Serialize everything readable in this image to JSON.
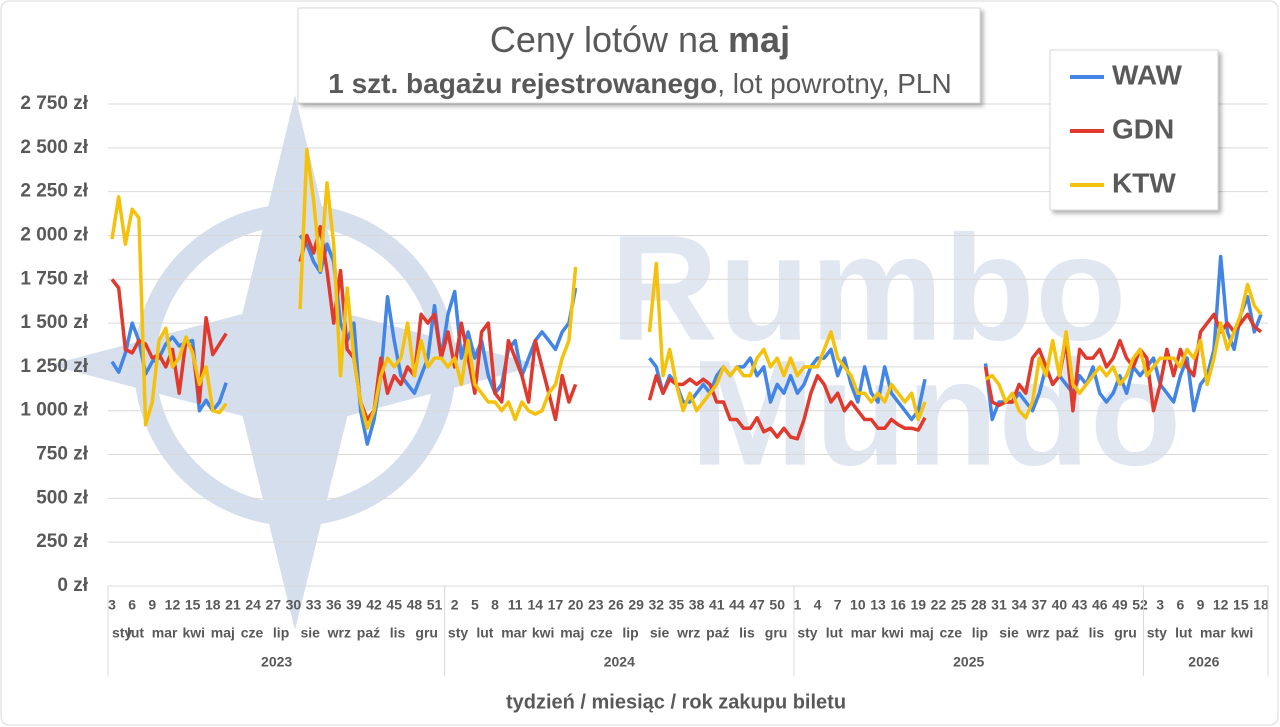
{
  "chart_data": {
    "type": "line",
    "title": "Ceny lotów na",
    "title_bold": "maj",
    "subtitle_bold": "1 szt. bagażu rejestrowanego",
    "subtitle": ", lot powrotny, PLN",
    "x_label": "tydzień / miesiąc / rok zakupu biletu",
    "watermark": [
      "Rumbo",
      "Mundo"
    ],
    "categories": [
      "3",
      null,
      null,
      "6",
      null,
      null,
      "9",
      null,
      null,
      "12",
      null,
      null,
      "15",
      null,
      null,
      "18",
      null,
      null,
      "21",
      null,
      null,
      "24",
      null,
      null,
      "27",
      null,
      null,
      "30",
      null,
      null,
      "33",
      null,
      null,
      "36",
      null,
      null,
      "39",
      null,
      null,
      "42",
      null,
      null,
      "45",
      null,
      null,
      "48",
      null,
      null,
      "51",
      null,
      null,
      "2",
      null,
      null,
      "5",
      null,
      null,
      "8",
      null,
      null,
      "11",
      null,
      null,
      "14",
      null,
      null,
      "17",
      null,
      null,
      "20",
      null,
      null,
      "23",
      null,
      null,
      "26",
      null,
      null,
      "29",
      null,
      null,
      "32",
      null,
      null,
      "35",
      null,
      null,
      "38",
      null,
      null,
      "41",
      null,
      null,
      "44",
      null,
      null,
      "47",
      null,
      null,
      "50",
      null,
      null,
      "1",
      null,
      null,
      "4",
      null,
      null,
      "7",
      null,
      null,
      "10",
      null,
      null,
      "13",
      null,
      null,
      "16",
      null,
      null,
      "19",
      null,
      null,
      "22",
      null,
      null,
      "25",
      null,
      null,
      "28",
      null,
      null,
      "31",
      null,
      null,
      "34",
      null,
      null,
      "37",
      null,
      null,
      "40",
      null,
      null,
      "43",
      null,
      null,
      "46",
      null,
      null,
      "49",
      null,
      null,
      "52",
      null,
      null,
      "3",
      null,
      null,
      "6",
      null,
      null,
      "9",
      null,
      null,
      "12",
      null,
      null,
      "15",
      null,
      null,
      "18"
    ],
    "x_groups": [
      {
        "year": "2023",
        "months": [
          "sty",
          "lut",
          "mar",
          "kwi",
          "maj",
          "cze",
          "lip",
          "sie",
          "wrz",
          "paź",
          "lis",
          "gru"
        ]
      },
      {
        "year": "2024",
        "months": [
          "sty",
          "lut",
          "mar",
          "kwi",
          "maj",
          "cze",
          "lip",
          "sie",
          "wrz",
          "paź",
          "lis",
          "gru"
        ]
      },
      {
        "year": "2025",
        "months": [
          "sty",
          "lut",
          "mar",
          "kwi",
          "maj",
          "cze",
          "lip",
          "sie",
          "wrz",
          "paź",
          "lis",
          "gru"
        ]
      },
      {
        "year": "2026",
        "months": [
          "sty",
          "lut",
          "mar",
          "kwi"
        ]
      }
    ],
    "ylim": [
      0,
      2750
    ],
    "yticks": [
      {
        "value": 0,
        "label": "0 zł"
      },
      {
        "value": 250,
        "label": "250 zł"
      },
      {
        "value": 500,
        "label": "500 zł"
      },
      {
        "value": 750,
        "label": "750 zł"
      },
      {
        "value": 1000,
        "label": "1 000 zł"
      },
      {
        "value": 1250,
        "label": "1 250 zł"
      },
      {
        "value": 1500,
        "label": "1 500 zł"
      },
      {
        "value": 1750,
        "label": "1 750 zł"
      },
      {
        "value": 2000,
        "label": "2 000 zł"
      },
      {
        "value": 2250,
        "label": "2 250 zł"
      },
      {
        "value": 2500,
        "label": "2 500 zł"
      },
      {
        "value": 2750,
        "label": "2 750 zł"
      }
    ],
    "grid": true,
    "legend": "upper right",
    "series": [
      {
        "name": "WAW",
        "color": "#4285e6",
        "values": [
          1280,
          1220,
          1330,
          1500,
          1400,
          1210,
          1280,
          1300,
          1380,
          1420,
          1370,
          1390,
          1400,
          1000,
          1060,
          1000,
          1050,
          1160,
          null,
          null,
          null,
          null,
          null,
          null,
          null,
          null,
          null,
          null,
          2000,
          1950,
          1850,
          1790,
          1950,
          1850,
          1500,
          1400,
          1500,
          1000,
          810,
          950,
          1200,
          1650,
          1400,
          1200,
          1150,
          1100,
          1200,
          1300,
          1600,
          1300,
          1550,
          1680,
          1300,
          1450,
          1300,
          1400,
          1200,
          1100,
          1150,
          1350,
          1400,
          1200,
          1300,
          1400,
          1450,
          1400,
          1350,
          1450,
          1500,
          1700,
          null,
          null,
          null,
          null,
          null,
          null,
          null,
          null,
          null,
          null,
          1300,
          1250,
          1100,
          1200,
          1150,
          1050,
          1050,
          1100,
          1150,
          1100,
          1200,
          1250,
          1200,
          1250,
          1250,
          1300,
          1200,
          1250,
          1050,
          1150,
          1100,
          1200,
          1100,
          1150,
          1250,
          1300,
          1300,
          1350,
          1200,
          1300,
          1150,
          1050,
          1250,
          1100,
          1050,
          1250,
          1100,
          1050,
          1000,
          950,
          1000,
          1180,
          null,
          null,
          null,
          null,
          null,
          null,
          null,
          null,
          1270,
          950,
          1050,
          1050,
          1050,
          1100,
          1050,
          1000,
          1100,
          1250,
          1150,
          1200,
          1150,
          1100,
          1200,
          1150,
          1250,
          1100,
          1050,
          1100,
          1200,
          1100,
          1250,
          1200,
          1250,
          1300,
          1150,
          1100,
          1050,
          1200,
          1300,
          1000,
          1150,
          1200,
          1350,
          1880,
          1450,
          1350,
          1550,
          1650,
          1450,
          1550
        ]
      },
      {
        "name": "GDN",
        "color": "#e0392e",
        "values": [
          1750,
          1700,
          1350,
          1330,
          1400,
          1380,
          1300,
          1320,
          1250,
          1350,
          1100,
          1400,
          1350,
          1050,
          1530,
          1320,
          1380,
          1440,
          null,
          null,
          null,
          null,
          null,
          null,
          null,
          null,
          null,
          null,
          1850,
          2000,
          1900,
          2050,
          1800,
          1500,
          1800,
          1350,
          1300,
          1050,
          950,
          1000,
          1300,
          1100,
          1200,
          1150,
          1250,
          1200,
          1550,
          1500,
          1550,
          1300,
          1450,
          1250,
          1500,
          1300,
          1100,
          1450,
          1500,
          1100,
          1050,
          1400,
          1300,
          1200,
          1050,
          1400,
          1250,
          1100,
          950,
          1200,
          1050,
          1150,
          null,
          null,
          null,
          null,
          null,
          null,
          null,
          null,
          null,
          null,
          1060,
          1200,
          1100,
          1180,
          1150,
          1150,
          1180,
          1150,
          1180,
          1150,
          1050,
          1050,
          950,
          950,
          900,
          900,
          960,
          880,
          900,
          850,
          900,
          850,
          840,
          950,
          1100,
          1200,
          1150,
          1050,
          1100,
          1000,
          1050,
          1000,
          950,
          950,
          900,
          900,
          950,
          920,
          900,
          900,
          890,
          960,
          null,
          null,
          null,
          null,
          null,
          null,
          null,
          null,
          1250,
          1050,
          1030,
          1050,
          1050,
          1150,
          1100,
          1300,
          1350,
          1250,
          1150,
          1200,
          1400,
          1000,
          1350,
          1300,
          1300,
          1350,
          1250,
          1300,
          1400,
          1300,
          1250,
          1350,
          1300,
          1000,
          1150,
          1350,
          1200,
          1350,
          1250,
          1200,
          1450,
          1500,
          1550,
          1450,
          1500,
          1450,
          1500,
          1550,
          1480,
          1450
        ]
      },
      {
        "name": "KTW",
        "color": "#f4c20d",
        "values": [
          1980,
          2220,
          1950,
          2150,
          2100,
          920,
          1050,
          1400,
          1470,
          1250,
          1300,
          1420,
          1330,
          1150,
          1250,
          1000,
          990,
          1040,
          null,
          null,
          null,
          null,
          null,
          null,
          null,
          null,
          null,
          null,
          1580,
          2490,
          2200,
          1800,
          2300,
          1950,
          1200,
          1700,
          1300,
          1050,
          900,
          1000,
          1200,
          1300,
          1250,
          1300,
          1500,
          1200,
          1400,
          1250,
          1300,
          1300,
          1250,
          1300,
          1150,
          1400,
          1150,
          1100,
          1050,
          1050,
          1000,
          1050,
          950,
          1050,
          1000,
          980,
          1000,
          1100,
          1150,
          1300,
          1400,
          1820,
          null,
          null,
          null,
          null,
          null,
          null,
          null,
          null,
          null,
          null,
          1450,
          1840,
          1200,
          1350,
          1150,
          1000,
          1100,
          1000,
          1050,
          1100,
          1150,
          1250,
          1200,
          1250,
          1200,
          1200,
          1300,
          1350,
          1250,
          1300,
          1200,
          1300,
          1200,
          1250,
          1250,
          1250,
          1350,
          1450,
          1300,
          1250,
          1200,
          1100,
          1100,
          1050,
          1100,
          1050,
          1150,
          1100,
          1050,
          1100,
          950,
          1050,
          null,
          null,
          null,
          null,
          null,
          null,
          null,
          null,
          1180,
          1200,
          1150,
          1050,
          1100,
          1000,
          960,
          1050,
          1300,
          1200,
          1400,
          1200,
          1450,
          1150,
          1100,
          1150,
          1200,
          1250,
          1200,
          1250,
          1150,
          1200,
          1300,
          1350,
          1200,
          1250,
          1300,
          1300,
          1300,
          1250,
          1350,
          1300,
          1400,
          1150,
          1300,
          1500,
          1350,
          1450,
          1550,
          1720,
          1600,
          1550
        ]
      }
    ]
  }
}
